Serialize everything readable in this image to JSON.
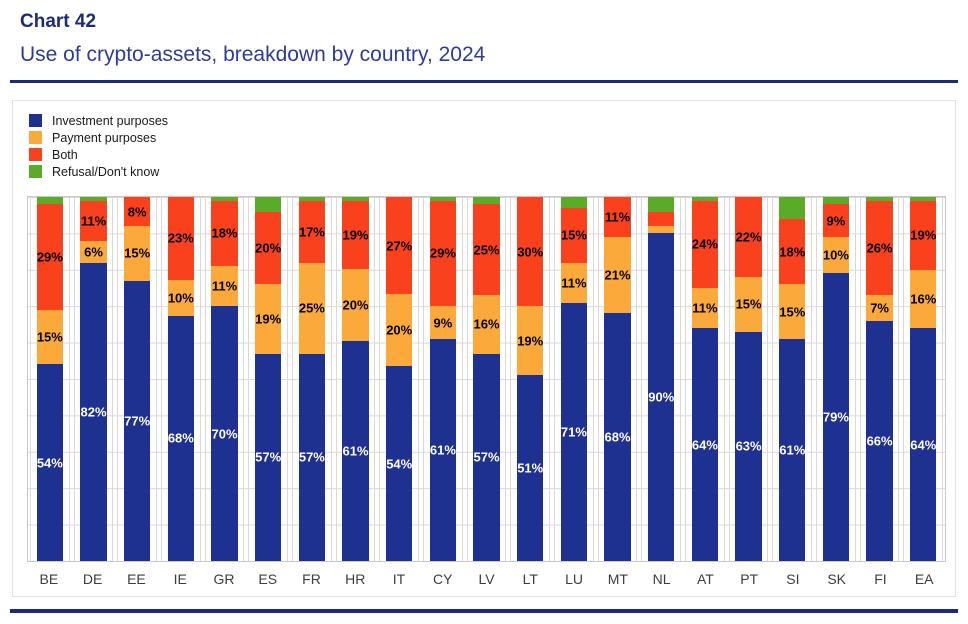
{
  "header": {
    "chart_number": "Chart 42",
    "title": "Use of crypto-assets, breakdown by country, 2024"
  },
  "chart_data": {
    "type": "bar",
    "subtype": "stacked-percentage-column",
    "title": "Use of crypto-assets, breakdown by country, 2024",
    "xlabel": "",
    "ylabel": "",
    "ylim": [
      0,
      100
    ],
    "grid": "horizontal lines every 10%, vertical category separators",
    "legend_position": "top-left",
    "categories": [
      "BE",
      "DE",
      "EE",
      "IE",
      "GR",
      "ES",
      "FR",
      "HR",
      "IT",
      "CY",
      "LV",
      "LT",
      "LU",
      "MT",
      "NL",
      "AT",
      "PT",
      "SI",
      "SK",
      "FI",
      "EA"
    ],
    "series": [
      {
        "name": "Investment purposes",
        "key": "investment",
        "color": "#1e3090",
        "label_color": "#ffffff",
        "values": [
          54,
          82,
          77,
          68,
          70,
          57,
          57,
          61,
          54,
          61,
          57,
          51,
          71,
          68,
          90,
          64,
          63,
          61,
          79,
          66,
          64
        ],
        "labels": [
          "54%",
          "82%",
          "77%",
          "68%",
          "70%",
          "57%",
          "57%",
          "61%",
          "54%",
          "61%",
          "57%",
          "51%",
          "71%",
          "68%",
          "90%",
          "64%",
          "63%",
          "61%",
          "79%",
          "66%",
          "64%"
        ]
      },
      {
        "name": "Payment purposes",
        "key": "payment",
        "color": "#fba93b",
        "label_color": "#000000",
        "values": [
          15,
          6,
          15,
          10,
          11,
          19,
          25,
          20,
          20,
          9,
          16,
          19,
          11,
          21,
          2,
          11,
          15,
          15,
          10,
          7,
          16
        ],
        "labels": [
          "15%",
          "6%",
          "15%",
          "10%",
          "11%",
          "19%",
          "25%",
          "20%",
          "20%",
          "9%",
          "16%",
          "19%",
          "11%",
          "21%",
          "",
          "11%",
          "15%",
          "15%",
          "10%",
          "7%",
          "16%"
        ]
      },
      {
        "name": "Both",
        "key": "both",
        "color": "#f9421d",
        "label_color": "#000000",
        "values": [
          29,
          11,
          8,
          23,
          18,
          20,
          17,
          19,
          27,
          29,
          25,
          30,
          15,
          11,
          4,
          24,
          22,
          18,
          9,
          26,
          19
        ],
        "labels": [
          "29%",
          "11%",
          "8%",
          "23%",
          "18%",
          "20%",
          "17%",
          "19%",
          "27%",
          "29%",
          "25%",
          "30%",
          "15%",
          "11%",
          "",
          "24%",
          "22%",
          "18%",
          "9%",
          "26%",
          "19%"
        ]
      },
      {
        "name": "Refusal/Don't know",
        "key": "refusal",
        "color": "#5aac28",
        "label_color": "#000000",
        "values": [
          2,
          1,
          0,
          0,
          1,
          4,
          1,
          1,
          0,
          1,
          2,
          0,
          3,
          0,
          4,
          1,
          0,
          6,
          2,
          1,
          1
        ],
        "labels": [
          "",
          "",
          "",
          "",
          "",
          "",
          "",
          "",
          "",
          "",
          "",
          "",
          "",
          "",
          "",
          "",
          "",
          "",
          "",
          "",
          ""
        ]
      }
    ]
  }
}
